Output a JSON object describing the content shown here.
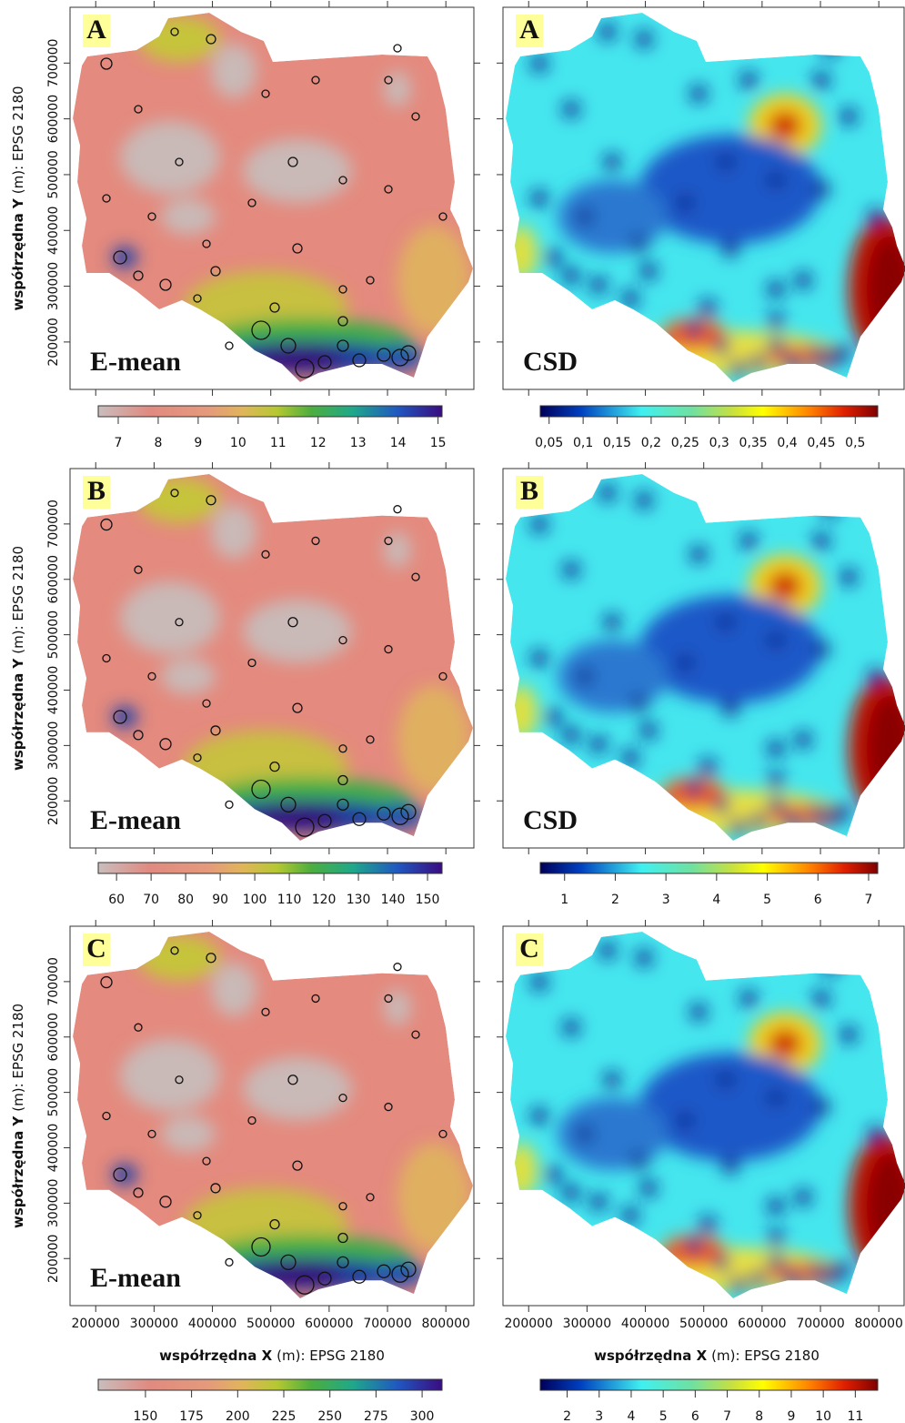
{
  "axes": {
    "x_label_bold": "współrzędna X",
    "x_label_rest": "(m): EPSG 2180",
    "y_label_bold": "współrzędna Y",
    "y_label_rest": "(m): EPSG 2180",
    "xlim": [
      156000,
      848000
    ],
    "ylim": [
      115000,
      800000
    ],
    "xticks": [
      200000,
      300000,
      400000,
      500000,
      600000,
      700000,
      800000
    ],
    "yticks": [
      200000,
      300000,
      400000,
      500000,
      600000,
      700000
    ]
  },
  "rows": [
    {
      "letter": "A",
      "left_title": "E-mean",
      "right_title": "CSD",
      "left_colorbar": {
        "lim": [
          6.5,
          15.1
        ],
        "ticks": [
          7,
          8,
          9,
          10,
          11,
          12,
          13,
          14,
          15
        ]
      },
      "right_colorbar": {
        "lim": [
          0.037,
          0.533
        ],
        "ticks": [
          {
            "value": 0.05,
            "label": "0,05"
          },
          {
            "value": 0.1,
            "label": "0,1"
          },
          {
            "value": 0.15,
            "label": "0,15"
          },
          {
            "value": 0.2,
            "label": "0,2"
          },
          {
            "value": 0.25,
            "label": "0,25"
          },
          {
            "value": 0.3,
            "label": "0,3"
          },
          {
            "value": 0.35,
            "label": "0,35"
          },
          {
            "value": 0.4,
            "label": "0,4"
          },
          {
            "value": 0.45,
            "label": "0,45"
          },
          {
            "value": 0.5,
            "label": "0,5"
          }
        ]
      }
    },
    {
      "letter": "B",
      "left_title": "E-mean",
      "right_title": "CSD",
      "left_colorbar": {
        "lim": [
          54.7,
          154.2
        ],
        "ticks": [
          60,
          70,
          80,
          90,
          100,
          110,
          120,
          130,
          140,
          150
        ]
      },
      "right_colorbar": {
        "lim": [
          0.52,
          7.18
        ],
        "ticks": [
          1,
          2,
          3,
          4,
          5,
          6,
          7
        ]
      }
    },
    {
      "letter": "C",
      "left_title": "E-mean",
      "left_colorbar": {
        "lim": [
          124.4,
          310.8
        ],
        "ticks": [
          150,
          175,
          200,
          225,
          250,
          275,
          300
        ]
      },
      "right_colorbar": {
        "lim": [
          1.16,
          11.7
        ],
        "ticks": [
          2,
          3,
          4,
          5,
          6,
          7,
          8,
          9,
          10,
          11
        ]
      }
    }
  ]
}
